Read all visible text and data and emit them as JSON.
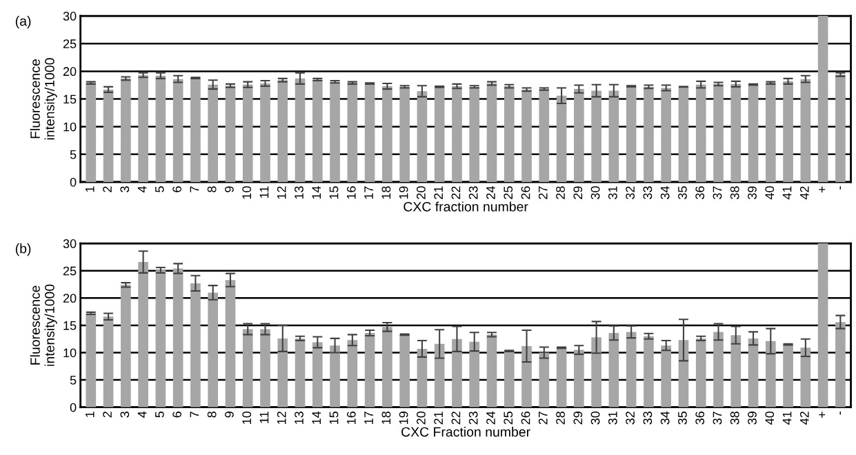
{
  "chart_data": [
    {
      "type": "bar",
      "title": "(a)",
      "xlabel": "CXC fraction number",
      "ylabel": "Fluorescence\nintensity/1000",
      "categories": [
        "1",
        "2",
        "3",
        "4",
        "5",
        "6",
        "7",
        "8",
        "9",
        "10",
        "11",
        "12",
        "13",
        "14",
        "15",
        "16",
        "17",
        "18",
        "19",
        "20",
        "21",
        "22",
        "23",
        "24",
        "25",
        "26",
        "27",
        "28",
        "29",
        "30",
        "31",
        "32",
        "33",
        "34",
        "35",
        "36",
        "37",
        "38",
        "39",
        "40",
        "41",
        "42",
        "+",
        "-"
      ],
      "values": [
        17.9,
        16.7,
        18.7,
        19.3,
        19.2,
        18.6,
        18.8,
        17.6,
        17.4,
        17.6,
        17.8,
        18.4,
        18.7,
        18.5,
        18.1,
        17.9,
        17.8,
        17.3,
        17.2,
        16.4,
        17.2,
        17.3,
        17.2,
        17.8,
        17.3,
        16.7,
        16.8,
        15.6,
        16.8,
        16.5,
        16.5,
        17.3,
        17.2,
        17.0,
        17.2,
        17.6,
        17.7,
        17.7,
        17.6,
        17.9,
        18.2,
        18.6,
        30,
        19.4
      ],
      "errors": [
        0.2,
        0.5,
        0.3,
        0.4,
        0.5,
        0.6,
        0.1,
        0.8,
        0.3,
        0.5,
        0.5,
        0.3,
        1.0,
        0.2,
        0.2,
        0.2,
        0.1,
        0.5,
        0.2,
        1.0,
        0.1,
        0.4,
        0.2,
        0.3,
        0.3,
        0.3,
        0.2,
        1.4,
        0.7,
        1.1,
        1.1,
        0.1,
        0.3,
        0.5,
        0.05,
        0.6,
        0.3,
        0.5,
        0.1,
        0.2,
        0.5,
        0.6,
        null,
        0.3
      ],
      "color": "#a6a6a6",
      "ylim": [
        0,
        30
      ],
      "yticks": [
        0,
        5,
        10,
        15,
        20,
        25,
        30
      ],
      "grid": "y"
    },
    {
      "type": "bar",
      "title": "(b)",
      "xlabel": "CXC Fraction number",
      "ylabel": "Fluorescence\nintensity/1000",
      "categories": [
        "1",
        "2",
        "3",
        "4",
        "5",
        "6",
        "7",
        "8",
        "9",
        "10",
        "11",
        "12",
        "13",
        "14",
        "15",
        "16",
        "17",
        "18",
        "19",
        "20",
        "21",
        "22",
        "23",
        "24",
        "25",
        "26",
        "27",
        "28",
        "29",
        "30",
        "31",
        "32",
        "33",
        "34",
        "35",
        "36",
        "37",
        "38",
        "39",
        "40",
        "41",
        "42",
        "+",
        "-"
      ],
      "values": [
        17.2,
        16.6,
        22.4,
        26.6,
        25.1,
        25.4,
        22.7,
        21.0,
        23.3,
        14.3,
        14.3,
        12.6,
        12.6,
        11.9,
        11.3,
        12.3,
        13.6,
        14.7,
        13.3,
        10.7,
        11.6,
        12.5,
        12.0,
        13.3,
        10.3,
        11.2,
        10.0,
        10.9,
        10.5,
        12.8,
        13.6,
        13.8,
        13.0,
        11.3,
        12.3,
        12.6,
        13.8,
        13.2,
        12.6,
        12.1,
        11.5,
        10.9,
        30,
        15.6
      ],
      "errors": [
        0.2,
        0.6,
        0.4,
        2.0,
        0.5,
        0.9,
        1.4,
        1.3,
        1.2,
        1.0,
        1.0,
        2.4,
        0.4,
        1.0,
        1.3,
        1.0,
        0.5,
        0.8,
        0.1,
        1.5,
        2.6,
        2.3,
        1.7,
        0.4,
        0.1,
        2.9,
        1.0,
        0.1,
        0.8,
        2.9,
        1.3,
        1.1,
        0.5,
        0.9,
        3.8,
        0.4,
        1.5,
        1.6,
        1.2,
        2.3,
        0.1,
        1.6,
        null,
        1.2
      ],
      "color": "#a6a6a6",
      "ylim": [
        0,
        30
      ],
      "yticks": [
        0,
        5,
        10,
        15,
        20,
        25,
        30
      ],
      "grid": "y"
    }
  ]
}
